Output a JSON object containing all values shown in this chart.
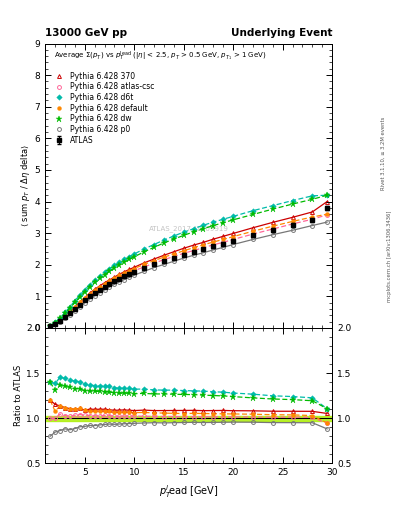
{
  "title_left": "13000 GeV pp",
  "title_right": "Underlying Event",
  "watermark": "ATLAS_2017_I1509919",
  "right_label": "Rivet 3.1.10, ≥ 3.2M events",
  "right_label2": "mcplots.cern.ch [arXiv:1306.3436]",
  "xlabel": "p_T^l ead [GeV]",
  "ylabel_main": "⟨ sum p_T / Δη delta⟩",
  "ylabel_ratio": "Ratio to ATLAS",
  "x": [
    1.5,
    2.0,
    2.5,
    3.0,
    3.5,
    4.0,
    4.5,
    5.0,
    5.5,
    6.0,
    6.5,
    7.0,
    7.5,
    8.0,
    8.5,
    9.0,
    9.5,
    10.0,
    11.0,
    12.0,
    13.0,
    14.0,
    15.0,
    16.0,
    17.0,
    18.0,
    19.0,
    20.0,
    22.0,
    24.0,
    26.0,
    28.0,
    29.5
  ],
  "atlas_y": [
    0.05,
    0.13,
    0.22,
    0.34,
    0.47,
    0.61,
    0.74,
    0.88,
    1.0,
    1.11,
    1.21,
    1.3,
    1.39,
    1.48,
    1.56,
    1.63,
    1.7,
    1.77,
    1.89,
    2.01,
    2.12,
    2.22,
    2.32,
    2.41,
    2.5,
    2.59,
    2.67,
    2.76,
    2.93,
    3.1,
    3.25,
    3.41,
    3.8
  ],
  "py370_y": [
    0.06,
    0.15,
    0.25,
    0.38,
    0.52,
    0.67,
    0.82,
    0.96,
    1.1,
    1.22,
    1.33,
    1.43,
    1.52,
    1.61,
    1.7,
    1.78,
    1.85,
    1.92,
    2.06,
    2.18,
    2.3,
    2.41,
    2.52,
    2.62,
    2.71,
    2.81,
    2.9,
    2.99,
    3.17,
    3.34,
    3.5,
    3.67,
    4.0
  ],
  "py_atlascsc_y": [
    0.05,
    0.13,
    0.23,
    0.35,
    0.48,
    0.63,
    0.77,
    0.91,
    1.03,
    1.14,
    1.24,
    1.34,
    1.43,
    1.51,
    1.59,
    1.67,
    1.74,
    1.81,
    1.93,
    2.05,
    2.16,
    2.26,
    2.36,
    2.45,
    2.54,
    2.63,
    2.71,
    2.8,
    2.97,
    3.13,
    3.29,
    3.44,
    3.58
  ],
  "py_d6t_y": [
    0.07,
    0.18,
    0.32,
    0.49,
    0.67,
    0.86,
    1.04,
    1.21,
    1.37,
    1.51,
    1.64,
    1.76,
    1.88,
    1.98,
    2.08,
    2.17,
    2.26,
    2.34,
    2.5,
    2.64,
    2.78,
    2.91,
    3.03,
    3.14,
    3.25,
    3.35,
    3.44,
    3.53,
    3.71,
    3.87,
    4.03,
    4.18,
    4.2
  ],
  "py_default_y": [
    0.06,
    0.14,
    0.25,
    0.38,
    0.52,
    0.67,
    0.82,
    0.96,
    1.08,
    1.2,
    1.31,
    1.4,
    1.5,
    1.58,
    1.66,
    1.74,
    1.81,
    1.88,
    2.01,
    2.13,
    2.24,
    2.34,
    2.44,
    2.54,
    2.63,
    2.72,
    2.8,
    2.89,
    3.06,
    3.22,
    3.37,
    3.51,
    3.6
  ],
  "py_dw_y": [
    0.07,
    0.17,
    0.3,
    0.46,
    0.63,
    0.81,
    0.98,
    1.15,
    1.3,
    1.44,
    1.57,
    1.68,
    1.79,
    1.9,
    1.99,
    2.08,
    2.17,
    2.25,
    2.41,
    2.55,
    2.69,
    2.81,
    2.93,
    3.04,
    3.14,
    3.24,
    3.33,
    3.42,
    3.59,
    3.76,
    3.92,
    4.07,
    4.2
  ],
  "py_p0_y": [
    0.04,
    0.11,
    0.19,
    0.3,
    0.41,
    0.54,
    0.67,
    0.8,
    0.92,
    1.02,
    1.12,
    1.21,
    1.3,
    1.38,
    1.46,
    1.53,
    1.6,
    1.67,
    1.79,
    1.91,
    2.01,
    2.11,
    2.21,
    2.3,
    2.38,
    2.47,
    2.55,
    2.64,
    2.8,
    2.95,
    3.09,
    3.24,
    3.35
  ],
  "atlas_color": "#000000",
  "py370_color": "#cc0000",
  "py_atlascsc_color": "#ff6699",
  "py_d6t_color": "#00bbaa",
  "py_default_color": "#ff8800",
  "py_dw_color": "#00bb00",
  "py_p0_color": "#777777",
  "ratio_band_color": "#aaee00",
  "xlim": [
    1.0,
    30.0
  ],
  "ylim_main": [
    0.0,
    9.0
  ],
  "ylim_ratio": [
    0.5,
    2.0
  ],
  "yticks_main": [
    0,
    1,
    2,
    3,
    4,
    5,
    6,
    7,
    8,
    9
  ],
  "yticks_ratio": [
    0.5,
    1.0,
    1.5,
    2.0
  ]
}
